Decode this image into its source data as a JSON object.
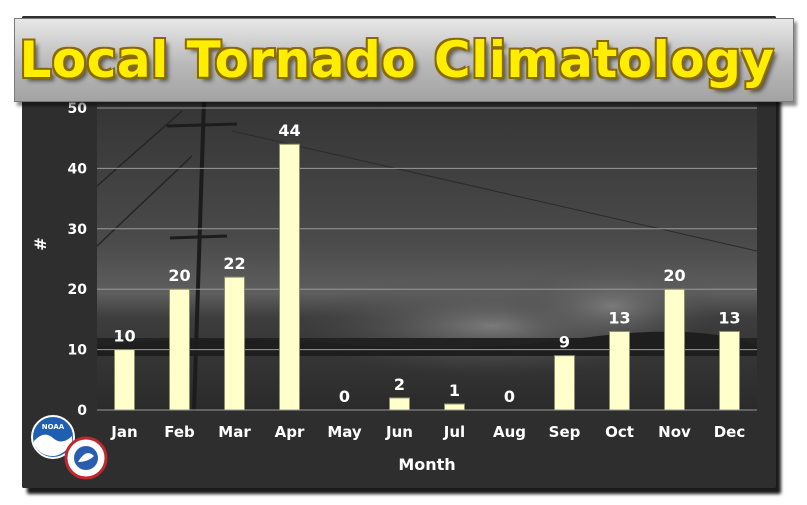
{
  "chart_data": {
    "type": "bar",
    "title": "Local Tornado Climatology",
    "xlabel": "Month",
    "ylabel": "#",
    "categories": [
      "Jan",
      "Feb",
      "Mar",
      "Apr",
      "May",
      "Jun",
      "Jul",
      "Aug",
      "Sep",
      "Oct",
      "Nov",
      "Dec"
    ],
    "values": [
      10,
      20,
      22,
      44,
      0,
      2,
      1,
      0,
      9,
      13,
      20,
      13
    ],
    "ylim": [
      0,
      50
    ],
    "yticks": [
      0,
      10,
      20,
      30,
      40,
      50
    ],
    "grid": true,
    "legend": "none",
    "bar_color": "#ffffcc"
  },
  "logos": {
    "noaa": {
      "icon": "noaa-logo-icon",
      "text": "NOAA"
    },
    "nws": {
      "icon": "nws-logo-icon"
    }
  },
  "colors": {
    "title_text": "#ffee00",
    "title_bar": "#c0c0c0",
    "background": "#2b2b2b"
  }
}
